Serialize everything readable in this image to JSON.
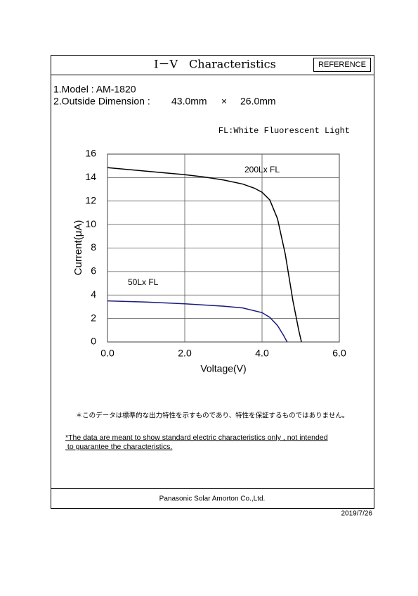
{
  "header": {
    "title": "I－V　Characteristics",
    "badge": "REFERENCE"
  },
  "specs": {
    "model": "1.Model : AM-1820",
    "dimension_label": "2.Outside Dimension :",
    "length": "43.0mm",
    "times": "×",
    "width": "26.0mm"
  },
  "chart_data": {
    "type": "line",
    "note": "FL:White Fluorescent Light",
    "xlabel": "Voltage(V)",
    "ylabel": "Current(μA)",
    "xlim": [
      0,
      6
    ],
    "xticks": [
      {
        "value": 0,
        "label": "0.0"
      },
      {
        "value": 2,
        "label": "2.0"
      },
      {
        "value": 4,
        "label": "4.0"
      },
      {
        "value": 6,
        "label": "6.0"
      }
    ],
    "ylim": [
      0,
      16
    ],
    "yticks": [
      0,
      2,
      4,
      6,
      8,
      10,
      12,
      14,
      16
    ],
    "grid": true,
    "series": [
      {
        "name": "200Lx FL",
        "color": "#000000",
        "x": [
          0,
          0.5,
          1,
          1.5,
          2,
          2.5,
          3,
          3.5,
          3.8,
          4,
          4.2,
          4.4,
          4.6,
          4.8,
          4.95,
          5.02
        ],
        "values": [
          14.85,
          14.7,
          14.55,
          14.4,
          14.25,
          14.05,
          13.8,
          13.45,
          13.1,
          12.75,
          12.1,
          10.5,
          7.5,
          3.5,
          1,
          0
        ]
      },
      {
        "name": "50Lx  FL",
        "color": "#1a1a80",
        "x": [
          0,
          1,
          2,
          3,
          3.5,
          4,
          4.2,
          4.4,
          4.55,
          4.65
        ],
        "values": [
          3.5,
          3.4,
          3.25,
          3.05,
          2.9,
          2.5,
          2.1,
          1.4,
          0.6,
          0
        ]
      }
    ]
  },
  "notes": {
    "japanese": "＊このデータは標準的な出力特性を示すものであり、特性を保証するものではありません。",
    "english_1": "*The data are meant to show standard electric characteristics only , not  intended",
    "english_2": " to guarantee the characteristics."
  },
  "footer": {
    "company": "Panasonic Solar  Amorton Co.,Ltd.",
    "date": "2019/7/26"
  }
}
